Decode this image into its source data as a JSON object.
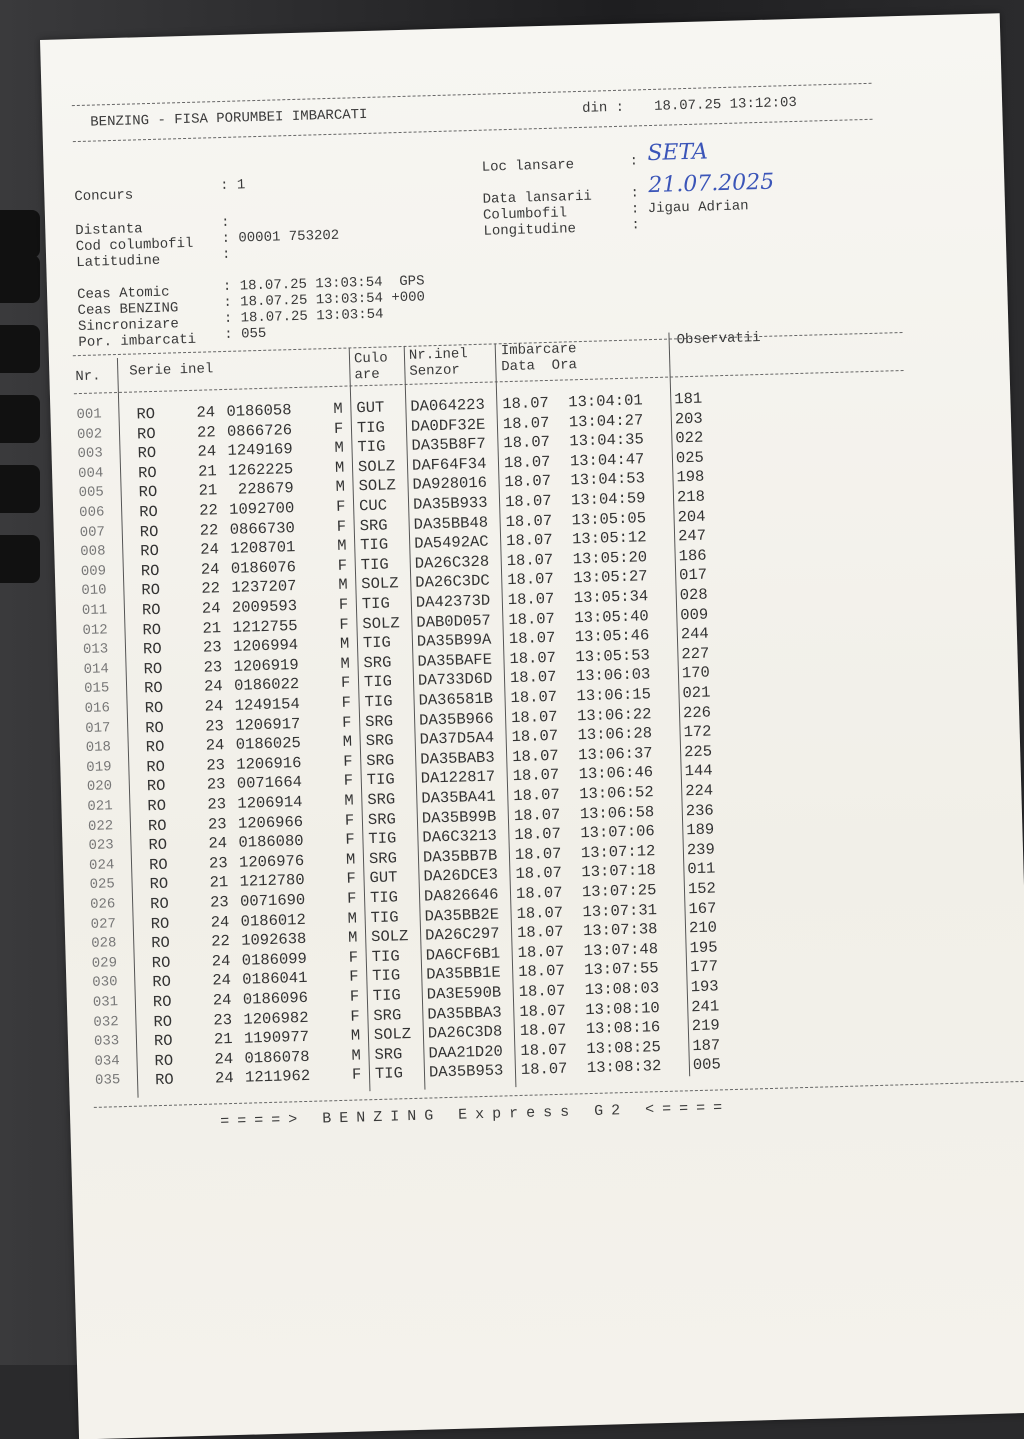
{
  "header": {
    "title": "BENZING - FISA PORUMBEI IMBARCATI",
    "din_label": "din :",
    "din_value": "18.07.25 13:12:03"
  },
  "info": {
    "concurs_label": "Concurs",
    "concurs_value": ": 1",
    "distanta_label": "Distanta",
    "distanta_value": ":",
    "cod_label": "Cod columbofil",
    "cod_value": ": 00001 753202",
    "latitudine_label": "Latitudine",
    "latitudine_value": ":",
    "loc_label": "Loc lansare",
    "loc_sep": ":",
    "loc_value": "SETA",
    "data_label": "Data lansarii",
    "data_sep": ":",
    "data_value": "21.07.2025",
    "columbofil_label": "Columbofil",
    "columbofil_value": ": Jigau Adrian",
    "longitudine_label": "Longitudine",
    "longitudine_value": ":",
    "ceas_atomic_label": "Ceas Atomic",
    "ceas_atomic_value": ": 18.07.25 13:03:54  GPS",
    "ceas_benzing_label": "Ceas BENZING",
    "ceas_benzing_value": ": 18.07.25 13:03:54 +000",
    "sincronizare_label": "Sincronizare",
    "sincronizare_value": ": 18.07.25 13:03:54",
    "por_label": "Por. imbarcati",
    "por_value": ": 055"
  },
  "table": {
    "headers": {
      "nr": "Nr.",
      "serie": "Serie inel",
      "culoare1": "Culo",
      "culoare2": "are",
      "inel1": "Nr.inel",
      "inel2": "Senzor",
      "imb1": "Imbarcare",
      "imb2": "Data  Ora",
      "obs": "Observatii"
    },
    "rows": [
      [
        "001",
        "RO",
        "24",
        "0186058",
        "M",
        "GUT",
        "DA064223",
        "18.07",
        "13:04:01",
        "181"
      ],
      [
        "002",
        "RO",
        "22",
        "0866726",
        "F",
        "TIG",
        "DA0DF32E",
        "18.07",
        "13:04:27",
        "203"
      ],
      [
        "003",
        "RO",
        "24",
        "1249169",
        "M",
        "TIG",
        "DA35B8F7",
        "18.07",
        "13:04:35",
        "022"
      ],
      [
        "004",
        "RO",
        "21",
        "1262225",
        "M",
        "SOLZ",
        "DAF64F34",
        "18.07",
        "13:04:47",
        "025"
      ],
      [
        "005",
        "RO",
        "21",
        " 228679",
        "M",
        "SOLZ",
        "DA928016",
        "18.07",
        "13:04:53",
        "198"
      ],
      [
        "006",
        "RO",
        "22",
        "1092700",
        "F",
        "CUC",
        "DA35B933",
        "18.07",
        "13:04:59",
        "218"
      ],
      [
        "007",
        "RO",
        "22",
        "0866730",
        "F",
        "SRG",
        "DA35BB48",
        "18.07",
        "13:05:05",
        "204"
      ],
      [
        "008",
        "RO",
        "24",
        "1208701",
        "M",
        "TIG",
        "DA5492AC",
        "18.07",
        "13:05:12",
        "247"
      ],
      [
        "009",
        "RO",
        "24",
        "0186076",
        "F",
        "TIG",
        "DA26C328",
        "18.07",
        "13:05:20",
        "186"
      ],
      [
        "010",
        "RO",
        "22",
        "1237207",
        "M",
        "SOLZ",
        "DA26C3DC",
        "18.07",
        "13:05:27",
        "017"
      ],
      [
        "011",
        "RO",
        "24",
        "2009593",
        "F",
        "TIG",
        "DA42373D",
        "18.07",
        "13:05:34",
        "028"
      ],
      [
        "012",
        "RO",
        "21",
        "1212755",
        "F",
        "SOLZ",
        "DAB0D057",
        "18.07",
        "13:05:40",
        "009"
      ],
      [
        "013",
        "RO",
        "23",
        "1206994",
        "M",
        "TIG",
        "DA35B99A",
        "18.07",
        "13:05:46",
        "244"
      ],
      [
        "014",
        "RO",
        "23",
        "1206919",
        "M",
        "SRG",
        "DA35BAFE",
        "18.07",
        "13:05:53",
        "227"
      ],
      [
        "015",
        "RO",
        "24",
        "0186022",
        "F",
        "TIG",
        "DA733D6D",
        "18.07",
        "13:06:03",
        "170"
      ],
      [
        "016",
        "RO",
        "24",
        "1249154",
        "F",
        "TIG",
        "DA36581B",
        "18.07",
        "13:06:15",
        "021"
      ],
      [
        "017",
        "RO",
        "23",
        "1206917",
        "F",
        "SRG",
        "DA35B966",
        "18.07",
        "13:06:22",
        "226"
      ],
      [
        "018",
        "RO",
        "24",
        "0186025",
        "M",
        "SRG",
        "DA37D5A4",
        "18.07",
        "13:06:28",
        "172"
      ],
      [
        "019",
        "RO",
        "23",
        "1206916",
        "F",
        "SRG",
        "DA35BAB3",
        "18.07",
        "13:06:37",
        "225"
      ],
      [
        "020",
        "RO",
        "23",
        "0071664",
        "F",
        "TIG",
        "DA122817",
        "18.07",
        "13:06:46",
        "144"
      ],
      [
        "021",
        "RO",
        "23",
        "1206914",
        "M",
        "SRG",
        "DA35BA41",
        "18.07",
        "13:06:52",
        "224"
      ],
      [
        "022",
        "RO",
        "23",
        "1206966",
        "F",
        "SRG",
        "DA35B99B",
        "18.07",
        "13:06:58",
        "236"
      ],
      [
        "023",
        "RO",
        "24",
        "0186080",
        "F",
        "TIG",
        "DA6C3213",
        "18.07",
        "13:07:06",
        "189"
      ],
      [
        "024",
        "RO",
        "23",
        "1206976",
        "M",
        "SRG",
        "DA35BB7B",
        "18.07",
        "13:07:12",
        "239"
      ],
      [
        "025",
        "RO",
        "21",
        "1212780",
        "F",
        "GUT",
        "DA26DCE3",
        "18.07",
        "13:07:18",
        "011"
      ],
      [
        "026",
        "RO",
        "23",
        "0071690",
        "F",
        "TIG",
        "DA826646",
        "18.07",
        "13:07:25",
        "152"
      ],
      [
        "027",
        "RO",
        "24",
        "0186012",
        "M",
        "TIG",
        "DA35BB2E",
        "18.07",
        "13:07:31",
        "167"
      ],
      [
        "028",
        "RO",
        "22",
        "1092638",
        "M",
        "SOLZ",
        "DA26C297",
        "18.07",
        "13:07:38",
        "210"
      ],
      [
        "029",
        "RO",
        "24",
        "0186099",
        "F",
        "TIG",
        "DA6CF6B1",
        "18.07",
        "13:07:48",
        "195"
      ],
      [
        "030",
        "RO",
        "24",
        "0186041",
        "F",
        "TIG",
        "DA35BB1E",
        "18.07",
        "13:07:55",
        "177"
      ],
      [
        "031",
        "RO",
        "24",
        "0186096",
        "F",
        "TIG",
        "DA3E590B",
        "18.07",
        "13:08:03",
        "193"
      ],
      [
        "032",
        "RO",
        "23",
        "1206982",
        "F",
        "SRG",
        "DA35BBA3",
        "18.07",
        "13:08:10",
        "241"
      ],
      [
        "033",
        "RO",
        "21",
        "1190977",
        "M",
        "SOLZ",
        "DA26C3D8",
        "18.07",
        "13:08:16",
        "219"
      ],
      [
        "034",
        "RO",
        "24",
        "0186078",
        "M",
        "SRG",
        "DAA21D20",
        "18.07",
        "13:08:25",
        "187"
      ],
      [
        "035",
        "RO",
        "24",
        "1211962",
        "F",
        "TIG",
        "DA35B953",
        "18.07",
        "13:08:32",
        "005"
      ]
    ]
  },
  "footer": "====> BENZING Express G2 <===="
}
